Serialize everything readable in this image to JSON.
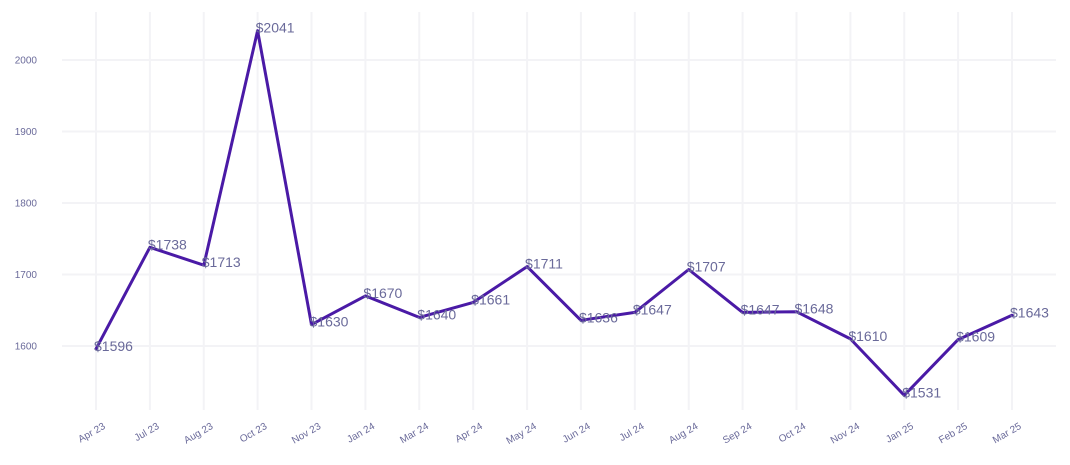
{
  "chart_data": {
    "type": "line",
    "title": "",
    "xlabel": "",
    "ylabel": "",
    "categories": [
      "Apr 23",
      "Jul 23",
      "Aug 23",
      "Oct 23",
      "Nov 23",
      "Jan 24",
      "Mar 24",
      "Apr 24",
      "May 24",
      "Jun 24",
      "Jul 24",
      "Aug 24",
      "Sep 24",
      "Oct 24",
      "Nov 24",
      "Jan 25",
      "Feb 25",
      "Mar 25"
    ],
    "series": [
      {
        "values": [
          1596,
          1738,
          1713,
          2041,
          1630,
          1670,
          1640,
          1661,
          1711,
          1636,
          1647,
          1707,
          1647,
          1648,
          1610,
          1531,
          1609,
          1643
        ],
        "labels": [
          "$1596",
          "$1738",
          "$1713",
          "$2041",
          "$1630",
          "$1670",
          "$1640",
          "$1661",
          "$1711",
          "$1636",
          "$1647",
          "$1707",
          "$1647",
          "$1648",
          "$1610",
          "$1531",
          "$1609",
          "$1643"
        ]
      }
    ],
    "yticks": [
      1600,
      1700,
      1800,
      1900,
      2000
    ],
    "ytick_labels": [
      "1600",
      "1700",
      "1800",
      "1900",
      "2000"
    ],
    "line_color": "#4a1aa6",
    "grid": true,
    "legend": "none"
  }
}
